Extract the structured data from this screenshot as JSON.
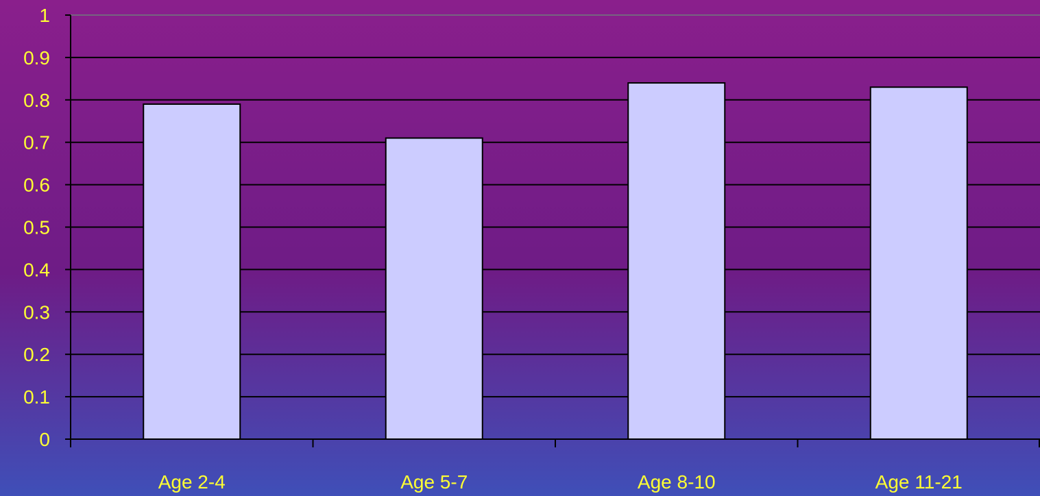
{
  "colors": {
    "background_top": "#8a1f8c",
    "background_mid": "#6e1c86",
    "background_bottom": "#3f4fb8",
    "bar_fill": "#ccccff",
    "bar_stroke": "#000000",
    "grid": "#000000",
    "tick_text": "#ffff33"
  },
  "chart_data": {
    "type": "bar",
    "categories": [
      "Age 2-4",
      "Age 5-7",
      "Age 8-10",
      "Age 11-21"
    ],
    "values": [
      0.79,
      0.71,
      0.84,
      0.83
    ],
    "y_ticks": [
      "0",
      "0.1",
      "0.2",
      "0.3",
      "0.4",
      "0.5",
      "0.6",
      "0.7",
      "0.8",
      "0.9",
      "1"
    ],
    "ylim": [
      0,
      1
    ],
    "grid": true,
    "legend": "none"
  }
}
